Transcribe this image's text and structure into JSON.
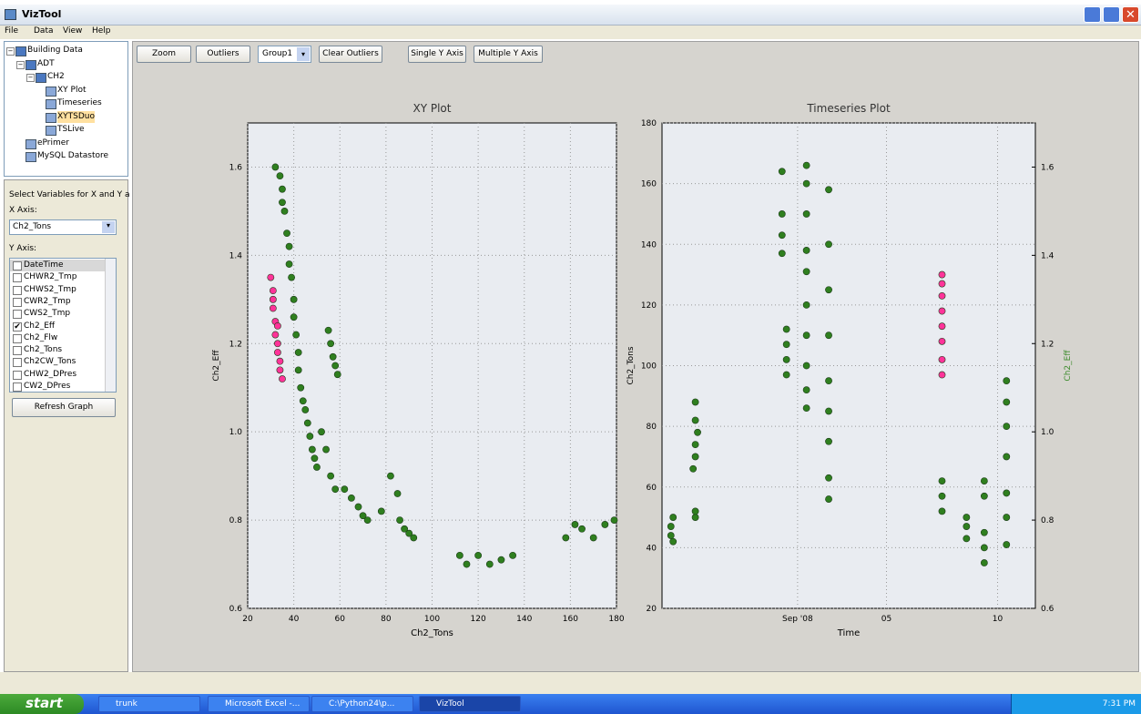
{
  "window": {
    "title": "VizTool"
  },
  "menu": [
    "File",
    "Data",
    "View",
    "Help"
  ],
  "tree": {
    "label": "Building Data",
    "children": [
      {
        "label": "ADT",
        "children": [
          {
            "label": "CH2",
            "children": [
              {
                "label": "XY Plot"
              },
              {
                "label": "Timeseries"
              },
              {
                "label": "XYTSDuo",
                "selected": true
              },
              {
                "label": "TSLive"
              }
            ]
          }
        ]
      },
      {
        "label": "ePrimer"
      },
      {
        "label": "MySQL Datastore"
      }
    ]
  },
  "variables": {
    "title": "Select Variables for X and Y a",
    "x_label": "X Axis:",
    "x_value": "Ch2_Tons",
    "y_label": "Y Axis:",
    "items": [
      {
        "label": "DateTime",
        "checked": false
      },
      {
        "label": "CHWR2_Tmp",
        "checked": false
      },
      {
        "label": "CHWS2_Tmp",
        "checked": false
      },
      {
        "label": "CWR2_Tmp",
        "checked": false
      },
      {
        "label": "CWS2_Tmp",
        "checked": false
      },
      {
        "label": "Ch2_Eff",
        "checked": true
      },
      {
        "label": "Ch2_Flw",
        "checked": false
      },
      {
        "label": "Ch2_Tons",
        "checked": false
      },
      {
        "label": "Ch2CW_Tons",
        "checked": false
      },
      {
        "label": "CHW2_DPres",
        "checked": false
      },
      {
        "label": "CW2_DPres",
        "checked": false
      }
    ],
    "button": "Refresh Graph"
  },
  "toolbar": {
    "zoom": "Zoom",
    "outliers": "Outliers",
    "group": "Group1",
    "clear": "Clear Outliers",
    "single": "Single Y Axis",
    "multiple": "Multiple Y Axis"
  },
  "chart_data": [
    {
      "type": "scatter",
      "title": "XY Plot",
      "x_label": "Ch2_Tons",
      "y_label": "Ch2_Eff",
      "xlim": [
        20,
        180
      ],
      "ylim": [
        0.6,
        1.7
      ],
      "xticks": [
        20,
        40,
        60,
        80,
        100,
        120,
        140,
        160,
        180
      ],
      "yticks": [
        0.6,
        0.8,
        {
          "value": 1,
          "label": "1.0"
        },
        1.2,
        1.4,
        1.6
      ],
      "grid": true,
      "series": [
        {
          "color": "#2f7f1f",
          "x": [
            32,
            34,
            35,
            36,
            35,
            37,
            38,
            38,
            39,
            40,
            40,
            41,
            42,
            42,
            43,
            44,
            45,
            46,
            47,
            48,
            49,
            50,
            52,
            54,
            56,
            58,
            55,
            56,
            57,
            58,
            59,
            62,
            65,
            68,
            70,
            72,
            78,
            82,
            85,
            86,
            88,
            90,
            92,
            112,
            115,
            120,
            125,
            130,
            135,
            158,
            162,
            165,
            170,
            175,
            179
          ],
          "values": [
            1.6,
            1.58,
            1.55,
            1.5,
            1.52,
            1.45,
            1.42,
            1.38,
            1.35,
            1.3,
            1.26,
            1.22,
            1.18,
            1.14,
            1.1,
            1.07,
            1.05,
            1.02,
            0.99,
            0.96,
            0.94,
            0.92,
            1.0,
            0.96,
            0.9,
            0.87,
            1.23,
            1.2,
            1.17,
            1.15,
            1.13,
            0.87,
            0.85,
            0.83,
            0.81,
            0.8,
            0.82,
            0.9,
            0.86,
            0.8,
            0.78,
            0.77,
            0.76,
            0.72,
            0.7,
            0.72,
            0.7,
            0.71,
            0.72,
            0.76,
            0.79,
            0.78,
            0.76,
            0.79,
            0.8
          ]
        },
        {
          "color": "#ff3399",
          "x": [
            30,
            31,
            31,
            32,
            32,
            33,
            33,
            34,
            34,
            35,
            31,
            33
          ],
          "values": [
            1.35,
            1.32,
            1.28,
            1.25,
            1.22,
            1.2,
            1.18,
            1.16,
            1.14,
            1.12,
            1.3,
            1.24
          ]
        }
      ]
    },
    {
      "type": "scatter",
      "title": "Timeseries Plot",
      "x_label": "Time",
      "y_label": "Ch2_Tons",
      "y2_label": "Ch2_Eff",
      "y2_label_color": "#3a8a2a",
      "xlim": [
        -5.1,
        11.7
      ],
      "ylim": [
        20,
        180
      ],
      "y2lim": [
        0.6,
        1.7
      ],
      "xticks": [
        {
          "value": 1,
          "label": "Sep '08"
        },
        {
          "value": 5,
          "label": "05"
        },
        {
          "value": 10,
          "label": "10"
        }
      ],
      "yticks": [
        20,
        40,
        60,
        80,
        100,
        120,
        140,
        160,
        180
      ],
      "y2ticks": [
        0.6,
        0.8,
        {
          "value": 1,
          "label": "1.0"
        },
        1.2,
        1.4,
        1.6
      ],
      "grid": true,
      "series": [
        {
          "color": "#2f7f1f",
          "x": [
            -4.7,
            -4.7,
            -4.6,
            -4.6,
            -3.6,
            -3.6,
            -3.7,
            -3.6,
            -3.6,
            -3.5,
            -3.6,
            -3.6,
            0.3,
            0.3,
            0.3,
            0.3,
            0.5,
            0.5,
            0.5,
            0.5,
            1.4,
            1.4,
            1.4,
            1.4,
            1.4,
            1.4,
            1.4,
            1.4,
            1.4,
            1.4,
            2.4,
            2.4,
            2.4,
            2.4,
            2.4,
            2.4,
            2.4,
            2.4,
            2.4,
            7.5,
            7.5,
            7.5,
            8.6,
            8.6,
            8.6,
            9.4,
            9.4,
            9.4,
            9.4,
            9.4,
            10.4,
            10.4,
            10.4,
            10.4,
            10.4,
            10.4,
            10.4
          ],
          "values": [
            44,
            47,
            50,
            42,
            50,
            52,
            66,
            70,
            74,
            78,
            82,
            88,
            137,
            143,
            150,
            164,
            97,
            102,
            107,
            112,
            86,
            92,
            100,
            110,
            120,
            131,
            138,
            150,
            160,
            166,
            56,
            63,
            75,
            85,
            95,
            110,
            125,
            140,
            158,
            52,
            57,
            62,
            43,
            47,
            50,
            35,
            40,
            45,
            57,
            62,
            41,
            50,
            58,
            70,
            80,
            88,
            95
          ]
        },
        {
          "color": "#ff3399",
          "x": [
            7.5,
            7.5,
            7.5,
            7.5,
            7.5,
            7.5,
            7.5,
            7.5
          ],
          "values": [
            97,
            102,
            108,
            113,
            118,
            123,
            127,
            130
          ]
        }
      ]
    }
  ],
  "taskbar": {
    "start": "start",
    "items": [
      "trunk",
      "Microsoft Excel -...",
      "C:\\Python24\\p...",
      "VizTool"
    ],
    "clock": "7:31 PM"
  }
}
